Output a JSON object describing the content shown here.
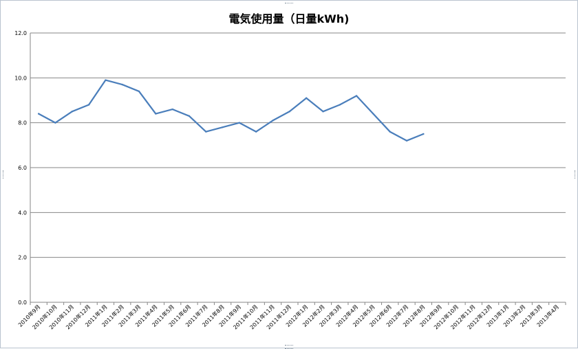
{
  "chart_data": {
    "type": "line",
    "title": "電気使用量（日量kWh)",
    "xlabel": "",
    "ylabel": "",
    "ylim": [
      0,
      12
    ],
    "yticks": [
      "0.0",
      "2.0",
      "4.0",
      "6.0",
      "8.0",
      "10.0",
      "12.0"
    ],
    "grid": true,
    "legend": "none",
    "categories": [
      "2010年9月",
      "2010年10月",
      "2010年11月",
      "2010年12月",
      "2011年1月",
      "2011年2月",
      "2011年3月",
      "2011年4月",
      "2011年5月",
      "2011年6月",
      "2011年7月",
      "2011年8月",
      "2011年9月",
      "2011年10月",
      "2011年11月",
      "2011年12月",
      "2012年1月",
      "2012年2月",
      "2012年3月",
      "2012年4月",
      "2012年5月",
      "2012年6月",
      "2012年7月",
      "2012年8月",
      "2012年9月",
      "2012年10月",
      "2012年11月",
      "2012年12月",
      "2013年1月",
      "2013年2月",
      "2013年3月",
      "2013年4月"
    ],
    "series": [
      {
        "values": [
          8.4,
          8.0,
          8.5,
          8.8,
          9.9,
          9.7,
          9.4,
          8.4,
          8.6,
          8.3,
          7.6,
          7.8,
          8.0,
          7.6,
          8.1,
          8.5,
          9.1,
          8.5,
          8.8,
          9.2,
          8.4,
          7.6,
          7.2,
          7.5,
          null,
          null,
          null,
          null,
          null,
          null,
          null,
          null
        ]
      }
    ],
    "colors": {
      "line": "#4a7ebb",
      "grid": "#868686",
      "axis": "#868686"
    }
  }
}
